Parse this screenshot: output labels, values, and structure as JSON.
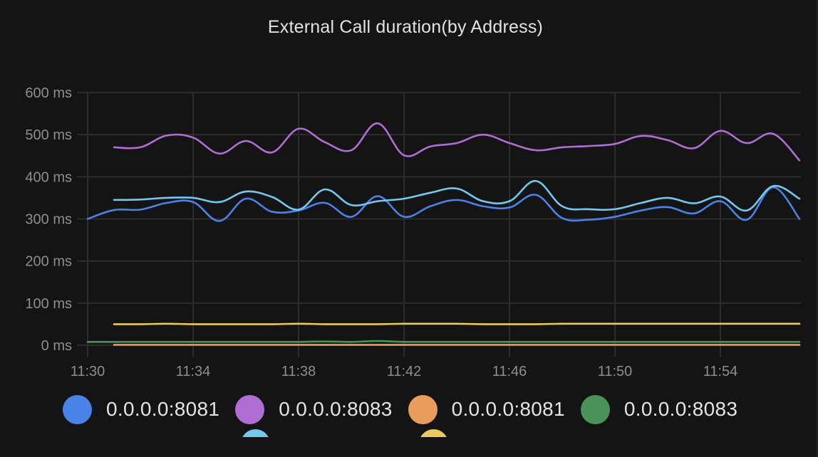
{
  "panel": {
    "title": "External Call duration(by Address)"
  },
  "chart_data": {
    "type": "line",
    "title": "External Call duration(by Address)",
    "xlabel": "",
    "ylabel": "",
    "ylim": [
      0,
      600
    ],
    "y_unit": "ms",
    "y_ticks": [
      "0 ms",
      "100 ms",
      "200 ms",
      "300 ms",
      "400 ms",
      "500 ms",
      "600 ms"
    ],
    "x_ticks": [
      "11:30",
      "11:34",
      "11:38",
      "11:42",
      "11:46",
      "11:50",
      "11:54"
    ],
    "x": [
      "11:30",
      "11:31",
      "11:32",
      "11:33",
      "11:34",
      "11:35",
      "11:36",
      "11:37",
      "11:38",
      "11:39",
      "11:40",
      "11:41",
      "11:42",
      "11:43",
      "11:44",
      "11:45",
      "11:46",
      "11:47",
      "11:48",
      "11:49",
      "11:50",
      "11:51",
      "11:52",
      "11:53",
      "11:54",
      "11:55",
      "11:56",
      "11:57"
    ],
    "grid": true,
    "legend_position": "bottom",
    "series": [
      {
        "name": "0.0.0.0:8081",
        "color": "#4a82e8",
        "values": [
          300,
          321,
          322,
          338,
          340,
          295,
          348,
          317,
          320,
          338,
          305,
          354,
          305,
          330,
          345,
          330,
          327,
          357,
          302,
          298,
          305,
          320,
          328,
          313,
          342,
          298,
          375,
          300
        ]
      },
      {
        "name": "0.0.0.0:8083",
        "color": "#b06dd4",
        "values": [
          null,
          470,
          470,
          498,
          493,
          455,
          485,
          458,
          514,
          482,
          463,
          527,
          451,
          472,
          480,
          500,
          480,
          463,
          470,
          473,
          478,
          497,
          487,
          468,
          509,
          480,
          502,
          439
        ]
      },
      {
        "name": "0.0.0.0:8081",
        "color": "#e89d5a",
        "values": [
          null,
          1,
          1,
          1,
          1,
          1,
          1,
          1,
          1,
          1,
          1,
          1,
          1,
          1,
          1,
          1,
          1,
          1,
          1,
          1,
          1,
          1,
          1,
          1,
          1,
          1,
          1,
          1
        ]
      },
      {
        "name": "0.0.0.0:8083",
        "color": "#49935b",
        "values": [
          8,
          8,
          8,
          8,
          8,
          8,
          8,
          8,
          8,
          9,
          8,
          10,
          8,
          8,
          8,
          8,
          8,
          8,
          8,
          8,
          8,
          8,
          8,
          8,
          8,
          8,
          8,
          8
        ]
      },
      {
        "name": "",
        "color": "#73c8ef",
        "values": [
          null,
          345,
          346,
          350,
          350,
          340,
          365,
          352,
          322,
          370,
          333,
          342,
          348,
          362,
          372,
          342,
          342,
          390,
          330,
          323,
          323,
          338,
          350,
          337,
          353,
          320,
          378,
          348
        ]
      },
      {
        "name": "",
        "color": "#ebc95c",
        "values": [
          null,
          50,
          50,
          51,
          50,
          50,
          50,
          50,
          51,
          50,
          50,
          50,
          51,
          51,
          51,
          50,
          50,
          50,
          51,
          51,
          51,
          51,
          51,
          51,
          51,
          51,
          51,
          51
        ]
      }
    ]
  },
  "legend": {
    "items": [
      {
        "label": "0.0.0.0:8081",
        "color": "#4a82e8"
      },
      {
        "label": "0.0.0.0:8083",
        "color": "#b06dd4"
      },
      {
        "label": "0.0.0.0:8081",
        "color": "#e89d5a"
      },
      {
        "label": "0.0.0.0:8083",
        "color": "#49935b"
      },
      {
        "label": "",
        "color": "#73c8ef"
      },
      {
        "label": "",
        "color": "#ebc95c"
      }
    ]
  }
}
